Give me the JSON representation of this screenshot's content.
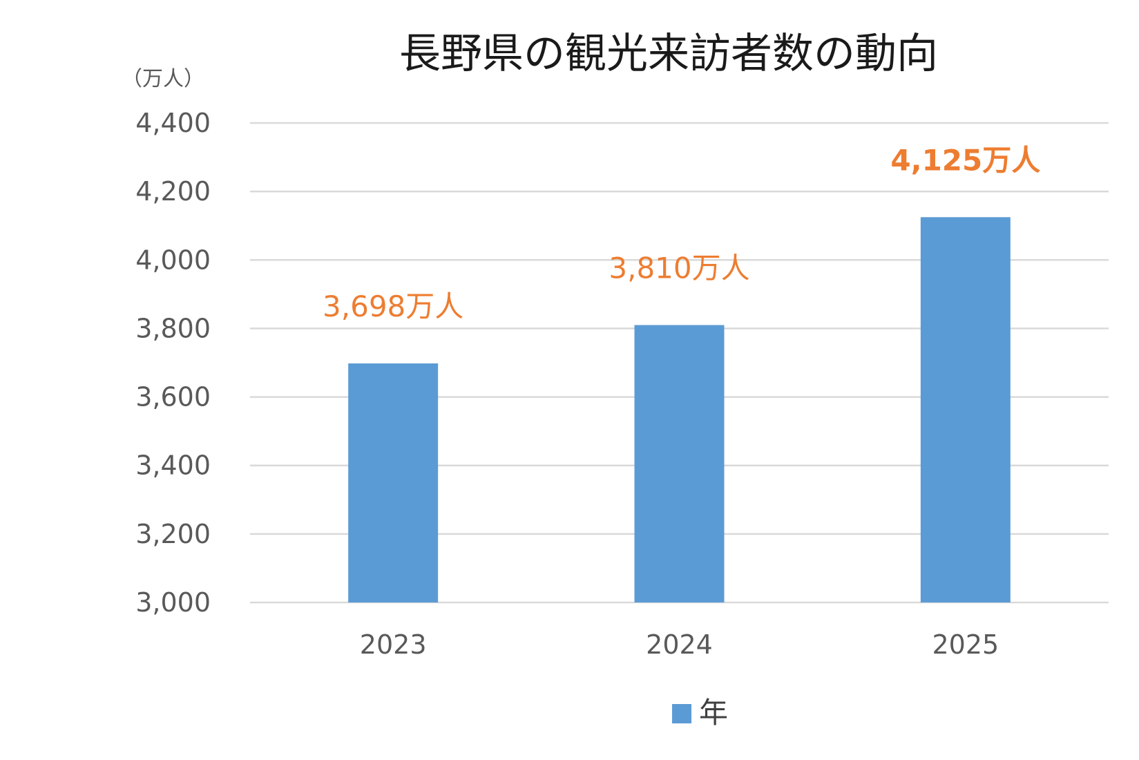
{
  "chart_data": {
    "type": "bar",
    "title": "長野県の観光来訪者数の動向",
    "unit_label": "（万人）",
    "categories": [
      "2023",
      "2024",
      "2025"
    ],
    "series": [
      {
        "name": "年",
        "values": [
          3698,
          3810,
          4125
        ],
        "color": "#5B9BD5"
      }
    ],
    "data_labels": [
      "3,698万人",
      "3,810万人",
      "4,125万人"
    ],
    "data_label_color": "#ED7D31",
    "emphasized_label_index": 2,
    "ylim": [
      3000,
      4400
    ],
    "yticks": [
      3000,
      3200,
      3400,
      3600,
      3800,
      4000,
      4200,
      4400
    ],
    "ytick_labels": [
      "3,000",
      "3,200",
      "3,400",
      "3,600",
      "3,800",
      "4,000",
      "4,200",
      "4,400"
    ],
    "xlabel": "",
    "ylabel": "",
    "grid": true,
    "legend_position": "bottom-center"
  }
}
